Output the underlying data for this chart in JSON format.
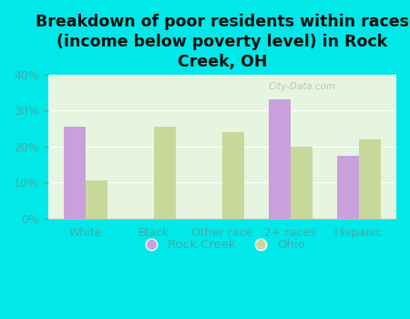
{
  "title": "Breakdown of poor residents within races\n(income below poverty level) in Rock\nCreek, OH",
  "categories": [
    "White",
    "Black",
    "Other race",
    "2+ races",
    "Hispanic"
  ],
  "rock_creek": [
    25.5,
    0,
    0,
    33.0,
    17.5
  ],
  "ohio": [
    10.5,
    25.5,
    24.0,
    20.0,
    22.0
  ],
  "rock_creek_color": "#c9a0dc",
  "ohio_color": "#c8d89a",
  "background_color": "#00e8e8",
  "plot_bg_color": "#e6f5e0",
  "ylim": [
    0,
    40
  ],
  "yticks": [
    0,
    10,
    20,
    30,
    40
  ],
  "ylabel_format": "%",
  "bar_width": 0.32,
  "title_fontsize": 12.5,
  "tick_fontsize": 9,
  "legend_fontsize": 9.5,
  "tick_color": "#44aaaa",
  "title_color": "#111111"
}
